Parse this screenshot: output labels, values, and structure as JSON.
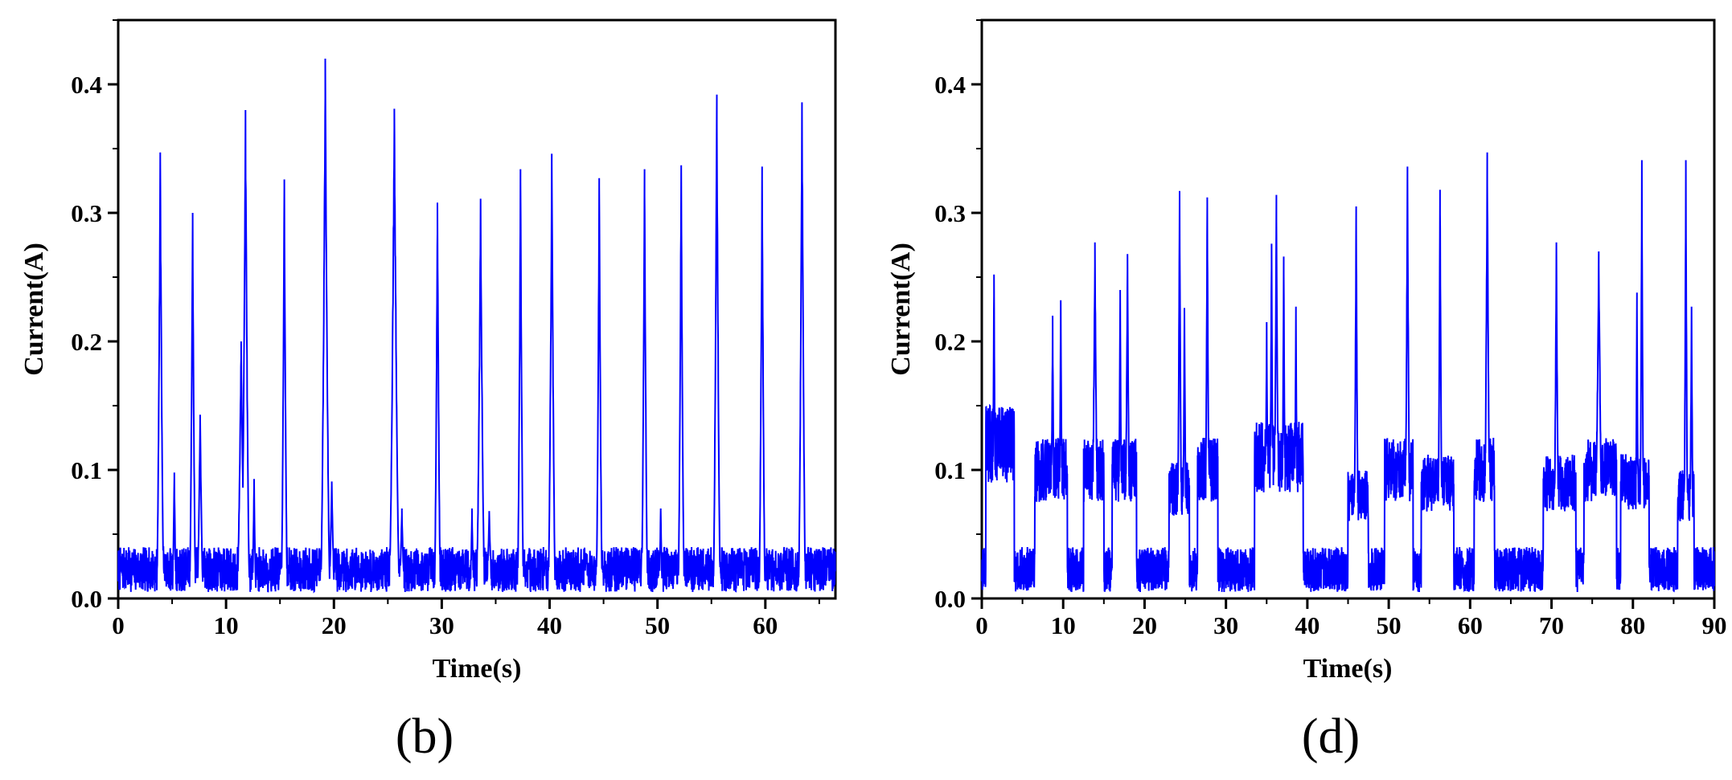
{
  "chart_data": [
    {
      "type": "line",
      "panel_label": "(b)",
      "xlabel": "Time(s)",
      "ylabel": "Current(A)",
      "xlim": [
        0,
        66.5
      ],
      "ylim": [
        0,
        0.45
      ],
      "xticks": [
        0,
        10,
        20,
        30,
        40,
        50,
        60
      ],
      "yticks": [
        0.0,
        0.1,
        0.2,
        0.3,
        0.4
      ],
      "xtick_labels": [
        "0",
        "10",
        "20",
        "30",
        "40",
        "50",
        "60"
      ],
      "ytick_labels": [
        "0.0",
        "0.1",
        "0.2",
        "0.3",
        "0.4"
      ],
      "grid": false,
      "line_color": "#0000ff",
      "baseline_range": [
        0.005,
        0.04
      ],
      "series": [
        {
          "peaks": [
            {
              "t": 3.9,
              "v": 0.347,
              "w": 0.35
            },
            {
              "t": 5.2,
              "v": 0.098,
              "w": 0.2
            },
            {
              "t": 6.9,
              "v": 0.3,
              "w": 0.3
            },
            {
              "t": 7.6,
              "v": 0.143,
              "w": 0.3
            },
            {
              "t": 11.4,
              "v": 0.2,
              "w": 0.4
            },
            {
              "t": 11.8,
              "v": 0.38,
              "w": 0.4
            },
            {
              "t": 12.6,
              "v": 0.093,
              "w": 0.2
            },
            {
              "t": 15.4,
              "v": 0.326,
              "w": 0.3
            },
            {
              "t": 19.2,
              "v": 0.42,
              "w": 0.45
            },
            {
              "t": 19.8,
              "v": 0.091,
              "w": 0.3
            },
            {
              "t": 25.6,
              "v": 0.381,
              "w": 0.5
            },
            {
              "t": 26.3,
              "v": 0.07,
              "w": 0.3
            },
            {
              "t": 29.6,
              "v": 0.308,
              "w": 0.3
            },
            {
              "t": 32.8,
              "v": 0.07,
              "w": 0.2
            },
            {
              "t": 33.6,
              "v": 0.311,
              "w": 0.4
            },
            {
              "t": 34.4,
              "v": 0.068,
              "w": 0.3
            },
            {
              "t": 37.3,
              "v": 0.334,
              "w": 0.3
            },
            {
              "t": 40.2,
              "v": 0.346,
              "w": 0.35
            },
            {
              "t": 44.6,
              "v": 0.327,
              "w": 0.3
            },
            {
              "t": 48.8,
              "v": 0.334,
              "w": 0.3
            },
            {
              "t": 50.3,
              "v": 0.07,
              "w": 0.2
            },
            {
              "t": 52.2,
              "v": 0.337,
              "w": 0.3
            },
            {
              "t": 55.5,
              "v": 0.392,
              "w": 0.35
            },
            {
              "t": 59.7,
              "v": 0.336,
              "w": 0.3
            },
            {
              "t": 63.4,
              "v": 0.386,
              "w": 0.35
            }
          ]
        }
      ]
    },
    {
      "type": "line",
      "panel_label": "(d)",
      "xlabel": "Time(s)",
      "ylabel": "Current(A)",
      "xlim": [
        0,
        90
      ],
      "ylim": [
        0,
        0.45
      ],
      "xticks": [
        0,
        10,
        20,
        30,
        40,
        50,
        60,
        70,
        80,
        90
      ],
      "yticks": [
        0.0,
        0.1,
        0.2,
        0.3,
        0.4
      ],
      "xtick_labels": [
        "0",
        "10",
        "20",
        "30",
        "40",
        "50",
        "60",
        "70",
        "80",
        "90"
      ],
      "ytick_labels": [
        "0.0",
        "0.1",
        "0.2",
        "0.3",
        "0.4"
      ],
      "grid": false,
      "line_color": "#0000ff",
      "baseline_range": [
        0.005,
        0.04
      ],
      "series": [
        {
          "plateaus": [
            {
              "start": 0.5,
              "end": 4.0,
              "level": 0.12
            },
            {
              "start": 6.5,
              "end": 10.5,
              "level": 0.1
            },
            {
              "start": 12.5,
              "end": 15.0,
              "level": 0.1
            },
            {
              "start": 16.0,
              "end": 19.0,
              "level": 0.1
            },
            {
              "start": 23.0,
              "end": 25.5,
              "level": 0.085
            },
            {
              "start": 26.5,
              "end": 29.0,
              "level": 0.1
            },
            {
              "start": 33.5,
              "end": 39.5,
              "level": 0.11
            },
            {
              "start": 45.0,
              "end": 47.5,
              "level": 0.08
            },
            {
              "start": 49.5,
              "end": 53.0,
              "level": 0.1
            },
            {
              "start": 54.0,
              "end": 58.0,
              "level": 0.09
            },
            {
              "start": 60.5,
              "end": 63.0,
              "level": 0.1
            },
            {
              "start": 69.0,
              "end": 73.0,
              "level": 0.09
            },
            {
              "start": 74.0,
              "end": 78.0,
              "level": 0.1
            },
            {
              "start": 78.5,
              "end": 82.0,
              "level": 0.09
            },
            {
              "start": 85.5,
              "end": 87.5,
              "level": 0.08
            }
          ],
          "peaks": [
            {
              "t": 1.5,
              "v": 0.252,
              "w": 0.3
            },
            {
              "t": 8.7,
              "v": 0.22,
              "w": 0.3
            },
            {
              "t": 9.7,
              "v": 0.232,
              "w": 0.3
            },
            {
              "t": 13.9,
              "v": 0.277,
              "w": 0.5
            },
            {
              "t": 17.0,
              "v": 0.24,
              "w": 0.3
            },
            {
              "t": 17.9,
              "v": 0.268,
              "w": 0.4
            },
            {
              "t": 24.3,
              "v": 0.317,
              "w": 0.35
            },
            {
              "t": 24.9,
              "v": 0.226,
              "w": 0.3
            },
            {
              "t": 27.7,
              "v": 0.312,
              "w": 0.35
            },
            {
              "t": 35.0,
              "v": 0.215,
              "w": 0.3
            },
            {
              "t": 35.6,
              "v": 0.276,
              "w": 0.3
            },
            {
              "t": 36.2,
              "v": 0.314,
              "w": 0.4
            },
            {
              "t": 37.1,
              "v": 0.266,
              "w": 0.3
            },
            {
              "t": 38.6,
              "v": 0.227,
              "w": 0.3
            },
            {
              "t": 46.0,
              "v": 0.305,
              "w": 0.35
            },
            {
              "t": 52.3,
              "v": 0.336,
              "w": 0.4
            },
            {
              "t": 56.3,
              "v": 0.318,
              "w": 0.35
            },
            {
              "t": 62.1,
              "v": 0.347,
              "w": 0.45
            },
            {
              "t": 70.6,
              "v": 0.277,
              "w": 0.4
            },
            {
              "t": 75.8,
              "v": 0.27,
              "w": 0.6
            },
            {
              "t": 80.5,
              "v": 0.238,
              "w": 0.25
            },
            {
              "t": 81.1,
              "v": 0.341,
              "w": 0.3
            },
            {
              "t": 86.5,
              "v": 0.341,
              "w": 0.3
            },
            {
              "t": 87.2,
              "v": 0.227,
              "w": 0.3
            }
          ]
        }
      ]
    }
  ]
}
